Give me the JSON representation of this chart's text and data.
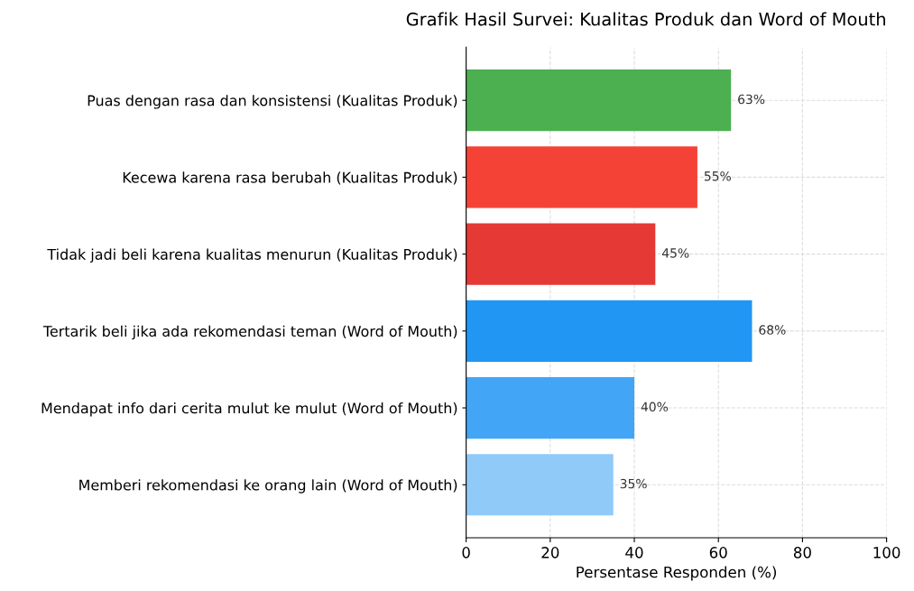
{
  "chart_data": {
    "type": "bar",
    "orientation": "horizontal",
    "title": "Grafik Hasil Survei: Kualitas Produk dan Word of Mouth",
    "xlabel": "Persentase Responden (%)",
    "categories": [
      "Puas dengan rasa dan konsistensi (Kualitas Produk)",
      "Kecewa karena rasa berubah (Kualitas Produk)",
      "Tidak jadi beli karena kualitas menurun (Kualitas Produk)",
      "Tertarik beli jika ada rekomendasi teman (Word of Mouth)",
      "Mendapat info dari cerita mulut ke mulut (Word of Mouth)",
      "Memberi rekomendasi ke orang lain (Word of Mouth)"
    ],
    "values": [
      63,
      55,
      45,
      68,
      40,
      35
    ],
    "value_labels": [
      "63%",
      "55%",
      "45%",
      "68%",
      "40%",
      "35%"
    ],
    "colors": [
      "#4caf50",
      "#f44336",
      "#e53935",
      "#2196f3",
      "#42a5f5",
      "#90caf9"
    ],
    "xlim": [
      0,
      100
    ],
    "xticks": [
      0,
      20,
      40,
      60,
      80,
      100
    ],
    "grid": true
  }
}
